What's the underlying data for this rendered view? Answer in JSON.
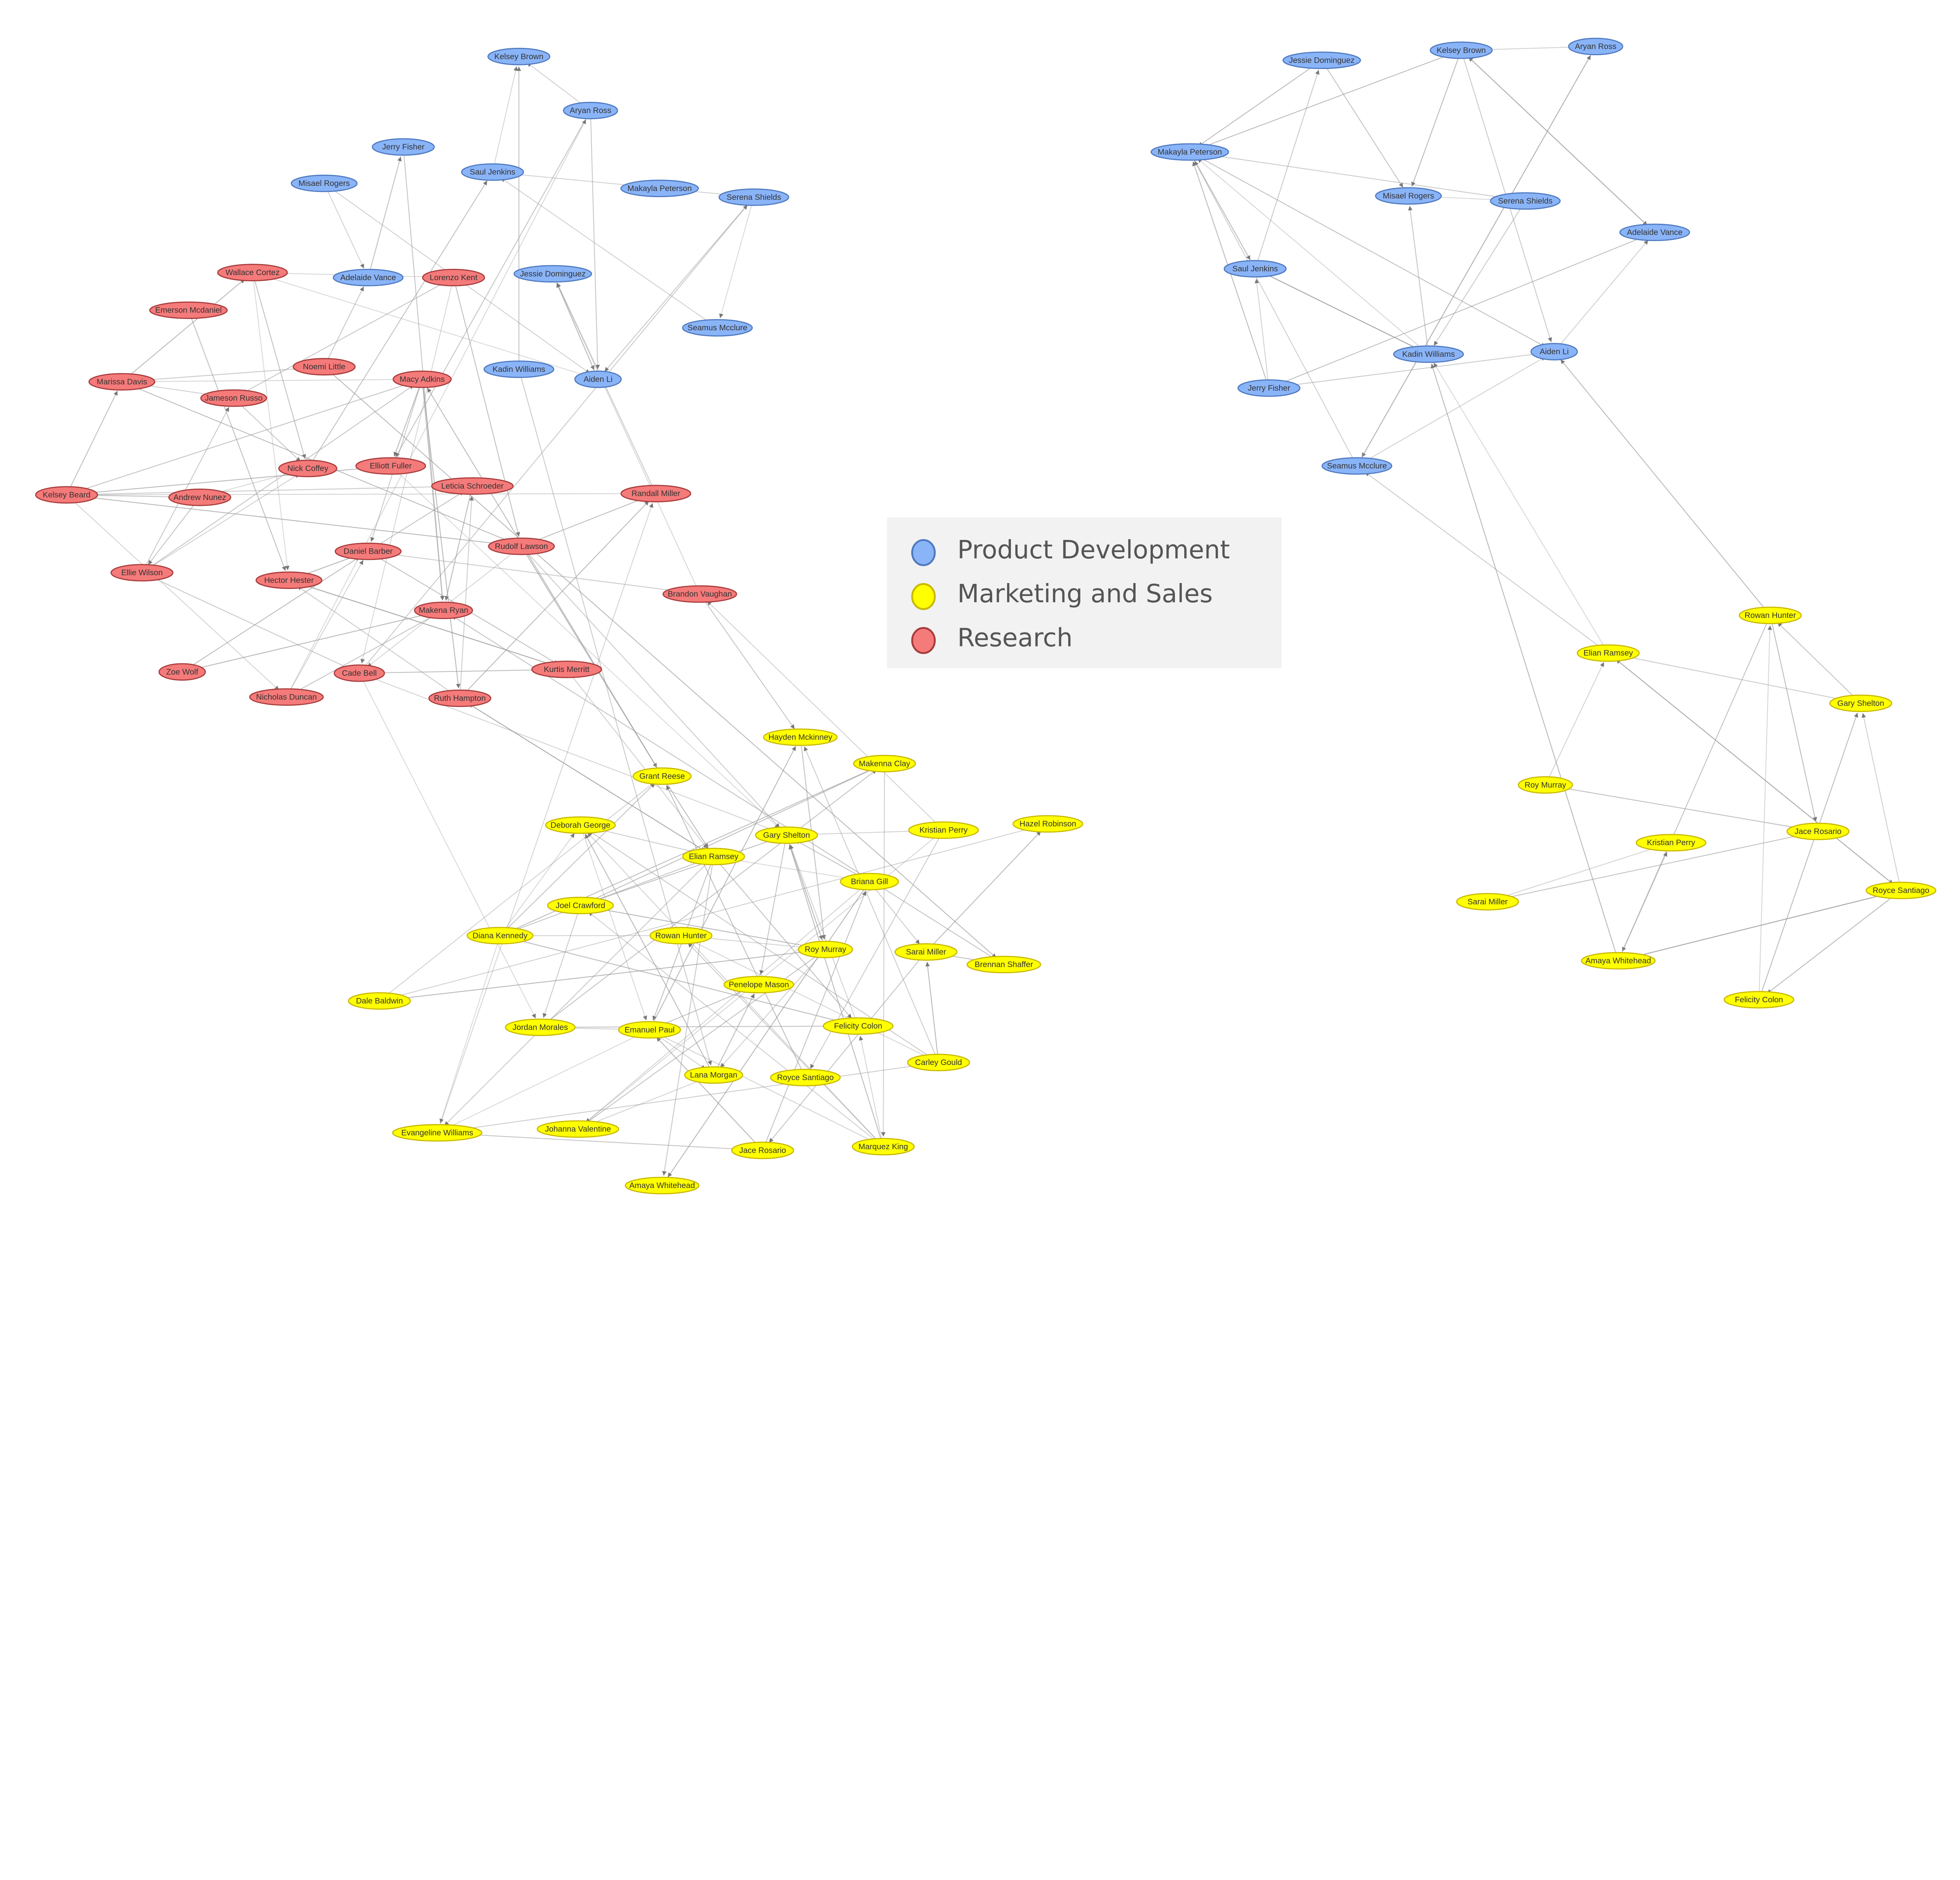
{
  "legend": {
    "items": [
      {
        "label": "Product Development",
        "color": "#8ab4f8",
        "stroke": "#4f7ac0"
      },
      {
        "label": "Marketing and Sales",
        "color": "#ffff00",
        "stroke": "#c9b800"
      },
      {
        "label": "Research",
        "color": "#f57a7a",
        "stroke": "#a83c3c"
      }
    ]
  },
  "groups": {
    "pd": {
      "fill": "#8ab4f8",
      "stroke": "#4f7ac0"
    },
    "ms": {
      "fill": "#ffff00",
      "stroke": "#c9b800"
    },
    "rs": {
      "fill": "#f57a7a",
      "stroke": "#a83c3c"
    }
  },
  "networks": [
    {
      "id": "left",
      "nodes": [
        {
          "name": "Kelsey Brown",
          "group": "pd"
        },
        {
          "name": "Aryan Ross",
          "group": "pd"
        },
        {
          "name": "Jerry Fisher",
          "group": "pd"
        },
        {
          "name": "Saul Jenkins",
          "group": "pd"
        },
        {
          "name": "Misael Rogers",
          "group": "pd"
        },
        {
          "name": "Makayla Peterson",
          "group": "pd"
        },
        {
          "name": "Serena Shields",
          "group": "pd"
        },
        {
          "name": "Adelaide Vance",
          "group": "pd"
        },
        {
          "name": "Jessie Dominguez",
          "group": "pd"
        },
        {
          "name": "Seamus Mcclure",
          "group": "pd"
        },
        {
          "name": "Kadin Williams",
          "group": "pd"
        },
        {
          "name": "Aiden Li",
          "group": "pd"
        },
        {
          "name": "Wallace Cortez",
          "group": "rs"
        },
        {
          "name": "Lorenzo Kent",
          "group": "rs"
        },
        {
          "name": "Emerson Mcdaniel",
          "group": "rs"
        },
        {
          "name": "Noemi Little",
          "group": "rs"
        },
        {
          "name": "Marissa Davis",
          "group": "rs"
        },
        {
          "name": "Jameson Russo",
          "group": "rs"
        },
        {
          "name": "Macy Adkins",
          "group": "rs"
        },
        {
          "name": "Kelsey Beard",
          "group": "rs"
        },
        {
          "name": "Andrew Nunez",
          "group": "rs"
        },
        {
          "name": "Nick Coffey",
          "group": "rs"
        },
        {
          "name": "Elliott Fuller",
          "group": "rs"
        },
        {
          "name": "Leticia Schroeder",
          "group": "rs"
        },
        {
          "name": "Randall Miller",
          "group": "rs"
        },
        {
          "name": "Rudolf Lawson",
          "group": "rs"
        },
        {
          "name": "Daniel Barber",
          "group": "rs"
        },
        {
          "name": "Ellie Wilson",
          "group": "rs"
        },
        {
          "name": "Hector Hester",
          "group": "rs"
        },
        {
          "name": "Makena Ryan",
          "group": "rs"
        },
        {
          "name": "Brandon Vaughan",
          "group": "rs"
        },
        {
          "name": "Zoe Wolf",
          "group": "rs"
        },
        {
          "name": "Cade Bell",
          "group": "rs"
        },
        {
          "name": "Nicholas Duncan",
          "group": "rs"
        },
        {
          "name": "Ruth Hampton",
          "group": "rs"
        },
        {
          "name": "Kurtis Merritt",
          "group": "rs"
        },
        {
          "name": "Hayden Mckinney",
          "group": "ms"
        },
        {
          "name": "Grant Reese",
          "group": "ms"
        },
        {
          "name": "Makenna Clay",
          "group": "ms"
        },
        {
          "name": "Deborah George",
          "group": "ms"
        },
        {
          "name": "Gary Shelton",
          "group": "ms"
        },
        {
          "name": "Kristian Perry",
          "group": "ms"
        },
        {
          "name": "Hazel Robinson",
          "group": "ms"
        },
        {
          "name": "Elian Ramsey",
          "group": "ms"
        },
        {
          "name": "Briana Gill",
          "group": "ms"
        },
        {
          "name": "Joel Crawford",
          "group": "ms"
        },
        {
          "name": "Diana Kennedy",
          "group": "ms"
        },
        {
          "name": "Rowan Hunter",
          "group": "ms"
        },
        {
          "name": "Roy Murray",
          "group": "ms"
        },
        {
          "name": "Sarai Miller",
          "group": "ms"
        },
        {
          "name": "Brennan Shaffer",
          "group": "ms"
        },
        {
          "name": "Penelope Mason",
          "group": "ms"
        },
        {
          "name": "Dale Baldwin",
          "group": "ms"
        },
        {
          "name": "Jordan Morales",
          "group": "ms"
        },
        {
          "name": "Emanuel Paul",
          "group": "ms"
        },
        {
          "name": "Felicity Colon",
          "group": "ms"
        },
        {
          "name": "Carley Gould",
          "group": "ms"
        },
        {
          "name": "Lana Morgan",
          "group": "ms"
        },
        {
          "name": "Royce Santiago",
          "group": "ms"
        },
        {
          "name": "Evangeline Williams",
          "group": "ms"
        },
        {
          "name": "Johanna Valentine",
          "group": "ms"
        },
        {
          "name": "Jace Rosario",
          "group": "ms"
        },
        {
          "name": "Marquez King",
          "group": "ms"
        },
        {
          "name": "Amaya Whitehead",
          "group": "ms"
        }
      ]
    },
    {
      "id": "right",
      "nodes": [
        {
          "name": "Jessie Dominguez",
          "group": "pd"
        },
        {
          "name": "Kelsey Brown",
          "group": "pd"
        },
        {
          "name": "Aryan Ross",
          "group": "pd"
        },
        {
          "name": "Makayla Peterson",
          "group": "pd"
        },
        {
          "name": "Misael Rogers",
          "group": "pd"
        },
        {
          "name": "Serena Shields",
          "group": "pd"
        },
        {
          "name": "Adelaide Vance",
          "group": "pd"
        },
        {
          "name": "Saul Jenkins",
          "group": "pd"
        },
        {
          "name": "Kadin Williams",
          "group": "pd"
        },
        {
          "name": "Aiden Li",
          "group": "pd"
        },
        {
          "name": "Jerry Fisher",
          "group": "pd"
        },
        {
          "name": "Seamus Mcclure",
          "group": "pd"
        },
        {
          "name": "Rowan Hunter",
          "group": "ms"
        },
        {
          "name": "Elian Ramsey",
          "group": "ms"
        },
        {
          "name": "Gary Shelton",
          "group": "ms"
        },
        {
          "name": "Roy Murray",
          "group": "ms"
        },
        {
          "name": "Kristian Perry",
          "group": "ms"
        },
        {
          "name": "Jace Rosario",
          "group": "ms"
        },
        {
          "name": "Sarai Miller",
          "group": "ms"
        },
        {
          "name": "Royce Santiago",
          "group": "ms"
        },
        {
          "name": "Amaya Whitehead",
          "group": "ms"
        },
        {
          "name": "Felicity Colon",
          "group": "ms"
        }
      ],
      "cross_edges": [
        [
          "Elian Ramsey",
          "Seamus Mcclure"
        ],
        [
          "Rowan Hunter",
          "Aiden Li"
        ],
        [
          "Elian Ramsey",
          "Kadin Williams"
        ]
      ]
    }
  ]
}
